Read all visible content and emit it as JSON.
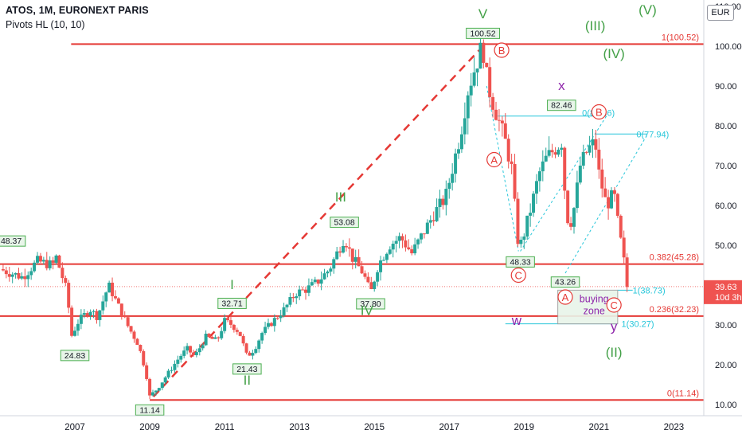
{
  "header": {
    "title": "ATOS, 1M, EURONEXT PARIS",
    "indicator": "Pivots HL (10, 10)",
    "currency": "EUR"
  },
  "price_scale": {
    "top_partial": "110.00",
    "ticks": [
      "100.00",
      "90.00",
      "80.00",
      "70.00",
      "60.00",
      "50.00",
      "40.00",
      "30.00",
      "20.00",
      "10.00"
    ],
    "last_price": "39.63",
    "countdown": "10d 3h",
    "last_price_color": "#ef5350"
  },
  "time_axis": [
    "2007",
    "2009",
    "2011",
    "2013",
    "2015",
    "2017",
    "2019",
    "2021",
    "2023"
  ],
  "colors": {
    "up": "#26a69a",
    "down": "#ef5350",
    "level": "#e53935",
    "wave_green": "#43a047",
    "wave_purple": "#8e24aa",
    "fib_cyan": "#26c6da",
    "pivot_fill": "#e8f5e9",
    "pivot_border": "#4caf50"
  },
  "chart_data": {
    "type": "candlestick",
    "title": "ATOS, 1M, EURONEXT PARIS",
    "y_scale": "linear",
    "ylim": [
      9,
      110
    ],
    "x_range": [
      2005.0,
      2023.8
    ],
    "grid": false,
    "price_path": [
      [
        2005.0,
        44
      ],
      [
        2005.6,
        42
      ],
      [
        2006.0,
        46
      ],
      [
        2006.4,
        45
      ],
      [
        2006.5,
        47
      ],
      [
        2006.8,
        38
      ],
      [
        2006.9,
        27
      ],
      [
        2007.1,
        31
      ],
      [
        2007.4,
        34
      ],
      [
        2007.6,
        32
      ],
      [
        2007.9,
        40
      ],
      [
        2008.1,
        36
      ],
      [
        2008.4,
        30
      ],
      [
        2008.7,
        25
      ],
      [
        2008.9,
        18
      ],
      [
        2009.0,
        12
      ],
      [
        2009.2,
        14
      ],
      [
        2009.5,
        18
      ],
      [
        2009.8,
        22
      ],
      [
        2010.0,
        24
      ],
      [
        2010.2,
        22
      ],
      [
        2010.5,
        27
      ],
      [
        2010.8,
        26
      ],
      [
        2011.0,
        31
      ],
      [
        2011.2,
        30
      ],
      [
        2011.4,
        28
      ],
      [
        2011.6,
        22
      ],
      [
        2011.8,
        24
      ],
      [
        2012.0,
        28
      ],
      [
        2012.3,
        31
      ],
      [
        2012.6,
        34
      ],
      [
        2012.9,
        38
      ],
      [
        2013.2,
        39
      ],
      [
        2013.5,
        41
      ],
      [
        2013.8,
        44
      ],
      [
        2014.0,
        48
      ],
      [
        2014.2,
        52
      ],
      [
        2014.4,
        47
      ],
      [
        2014.7,
        43
      ],
      [
        2014.9,
        38
      ],
      [
        2015.1,
        45
      ],
      [
        2015.4,
        50
      ],
      [
        2015.7,
        52
      ],
      [
        2016.0,
        48
      ],
      [
        2016.3,
        53
      ],
      [
        2016.6,
        58
      ],
      [
        2016.9,
        62
      ],
      [
        2017.1,
        70
      ],
      [
        2017.3,
        78
      ],
      [
        2017.5,
        89
      ],
      [
        2017.7,
        95
      ],
      [
        2017.8,
        98
      ],
      [
        2017.9,
        100
      ],
      [
        2018.0,
        92
      ],
      [
        2018.1,
        88
      ],
      [
        2018.3,
        82
      ],
      [
        2018.5,
        76
      ],
      [
        2018.7,
        68
      ],
      [
        2018.8,
        52
      ],
      [
        2018.9,
        50
      ],
      [
        2019.0,
        53
      ],
      [
        2019.2,
        60
      ],
      [
        2019.4,
        68
      ],
      [
        2019.6,
        72
      ],
      [
        2019.8,
        74
      ],
      [
        2020.0,
        76
      ],
      [
        2020.1,
        62
      ],
      [
        2020.2,
        54
      ],
      [
        2020.35,
        60
      ],
      [
        2020.5,
        70
      ],
      [
        2020.7,
        74
      ],
      [
        2020.9,
        76
      ],
      [
        2021.0,
        68
      ],
      [
        2021.2,
        60
      ],
      [
        2021.4,
        63
      ],
      [
        2021.5,
        56
      ],
      [
        2021.6,
        50
      ],
      [
        2021.7,
        44
      ],
      [
        2021.75,
        39.6
      ]
    ],
    "levels": [
      {
        "label": "1(100.52)",
        "value": 100.52
      },
      {
        "label": "0.382(45.28)",
        "value": 45.28
      },
      {
        "label": "0.236(32.23)",
        "value": 32.23
      },
      {
        "label": "0(11.14)",
        "value": 11.14
      }
    ],
    "fib_levels": [
      {
        "label": "0(82.46)",
        "value": 82.46
      },
      {
        "label": "0(77.94)",
        "value": 77.94
      },
      {
        "label": "1(38.73)",
        "value": 38.73
      },
      {
        "label": "1(30.27)",
        "value": 30.27
      }
    ],
    "pivots": [
      {
        "label": "48.37",
        "x": 2005.3,
        "y": 48.37,
        "pos": "above"
      },
      {
        "label": "24.83",
        "x": 2007.0,
        "y": 24.83,
        "pos": "below"
      },
      {
        "label": "11.14",
        "x": 2009.0,
        "y": 11.14,
        "pos": "below"
      },
      {
        "label": "32.71",
        "x": 2011.2,
        "y": 32.71,
        "pos": "above"
      },
      {
        "label": "21.43",
        "x": 2011.6,
        "y": 21.43,
        "pos": "below"
      },
      {
        "label": "53.08",
        "x": 2014.2,
        "y": 53.08,
        "pos": "above"
      },
      {
        "label": "37.80",
        "x": 2014.9,
        "y": 37.8,
        "pos": "below"
      },
      {
        "label": "100.52",
        "x": 2017.9,
        "y": 100.52,
        "pos": "above"
      },
      {
        "label": "48.33",
        "x": 2018.9,
        "y": 48.33,
        "pos": "below"
      },
      {
        "label": "82.46",
        "x": 2020.0,
        "y": 82.46,
        "pos": "above"
      },
      {
        "label": "43.26",
        "x": 2020.1,
        "y": 43.26,
        "pos": "below"
      }
    ],
    "wave_labels": [
      {
        "text": "I",
        "x": 2011.2,
        "y": 39,
        "color": "wave_green"
      },
      {
        "text": "II",
        "x": 2011.6,
        "y": 15,
        "color": "wave_green"
      },
      {
        "text": "III",
        "x": 2014.1,
        "y": 61,
        "color": "wave_green"
      },
      {
        "text": "IV",
        "x": 2014.8,
        "y": 32.5,
        "color": "wave_green"
      },
      {
        "text": "V",
        "x": 2017.9,
        "y": 107,
        "color": "wave_green"
      },
      {
        "text": "(III)",
        "x": 2020.9,
        "y": 104,
        "color": "wave_green"
      },
      {
        "text": "(IV)",
        "x": 2021.4,
        "y": 97,
        "color": "wave_green"
      },
      {
        "text": "(V)",
        "x": 2022.3,
        "y": 108,
        "color": "wave_green"
      },
      {
        "text": "(II)",
        "x": 2021.4,
        "y": 22,
        "color": "wave_green"
      },
      {
        "text": "x",
        "x": 2020.0,
        "y": 89,
        "color": "wave_purple"
      },
      {
        "text": "w",
        "x": 2018.8,
        "y": 30,
        "color": "wave_purple"
      },
      {
        "text": "y",
        "x": 2021.4,
        "y": 28.5,
        "color": "wave_purple"
      }
    ],
    "circled_labels": [
      {
        "text": "B",
        "x": 2018.4,
        "y": 99
      },
      {
        "text": "A",
        "x": 2018.2,
        "y": 71.5
      },
      {
        "text": "C",
        "x": 2018.85,
        "y": 42.5
      },
      {
        "text": "B",
        "x": 2021.0,
        "y": 83.5
      },
      {
        "text": "A",
        "x": 2020.1,
        "y": 37
      },
      {
        "text": "C",
        "x": 2021.4,
        "y": 35
      }
    ],
    "buying_zone": {
      "label_line1": "buying",
      "label_line2": "zone",
      "x0": 2019.9,
      "x1": 2021.5,
      "y0": 30.27,
      "y1": 38.73
    }
  }
}
